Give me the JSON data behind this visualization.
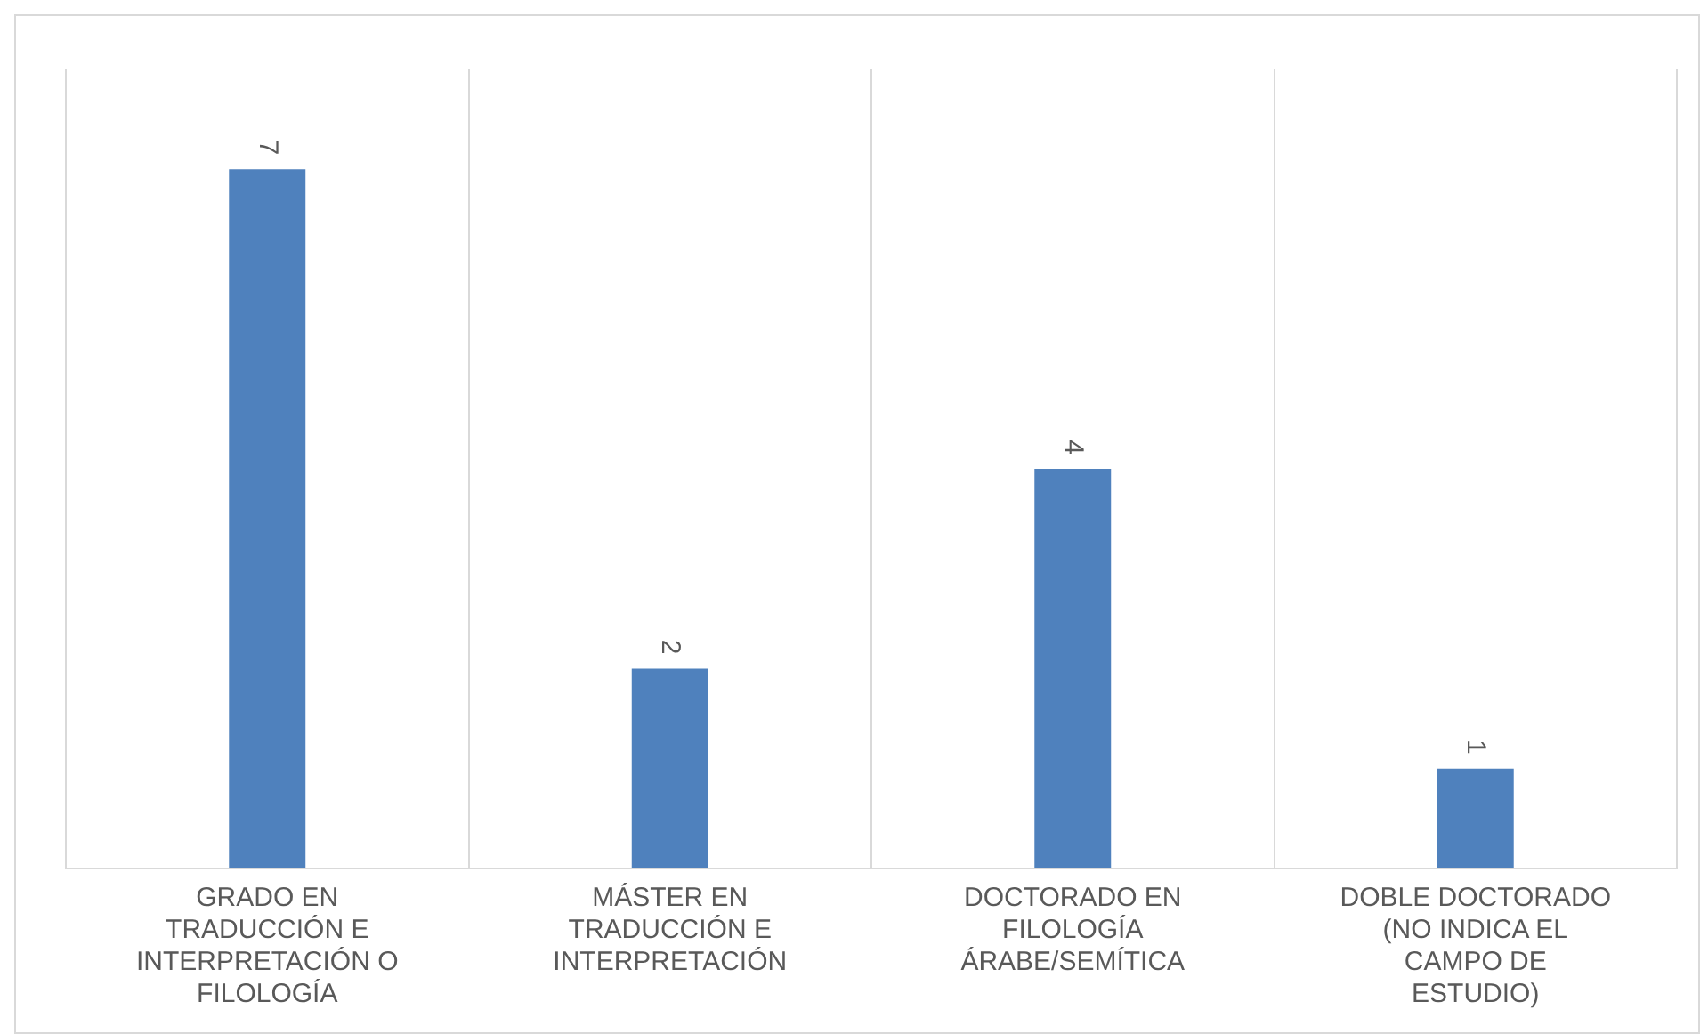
{
  "chart_data": {
    "type": "bar",
    "categories": [
      "GRADO EN TRADUCCIÓN E INTERPRETACIÓN O FILOLOGÍA",
      "MÁSTER EN TRADUCCIÓN E INTERPRETACIÓN",
      "DOCTORADO EN FILOLOGÍA ÁRABE/SEMÍTICA",
      "DOBLE DOCTORADO (NO INDICA EL CAMPO DE ESTUDIO)"
    ],
    "values": [
      7,
      2,
      4,
      1
    ],
    "color": "#4f81bd",
    "data_labels": true,
    "grid": "x",
    "legend": false
  }
}
